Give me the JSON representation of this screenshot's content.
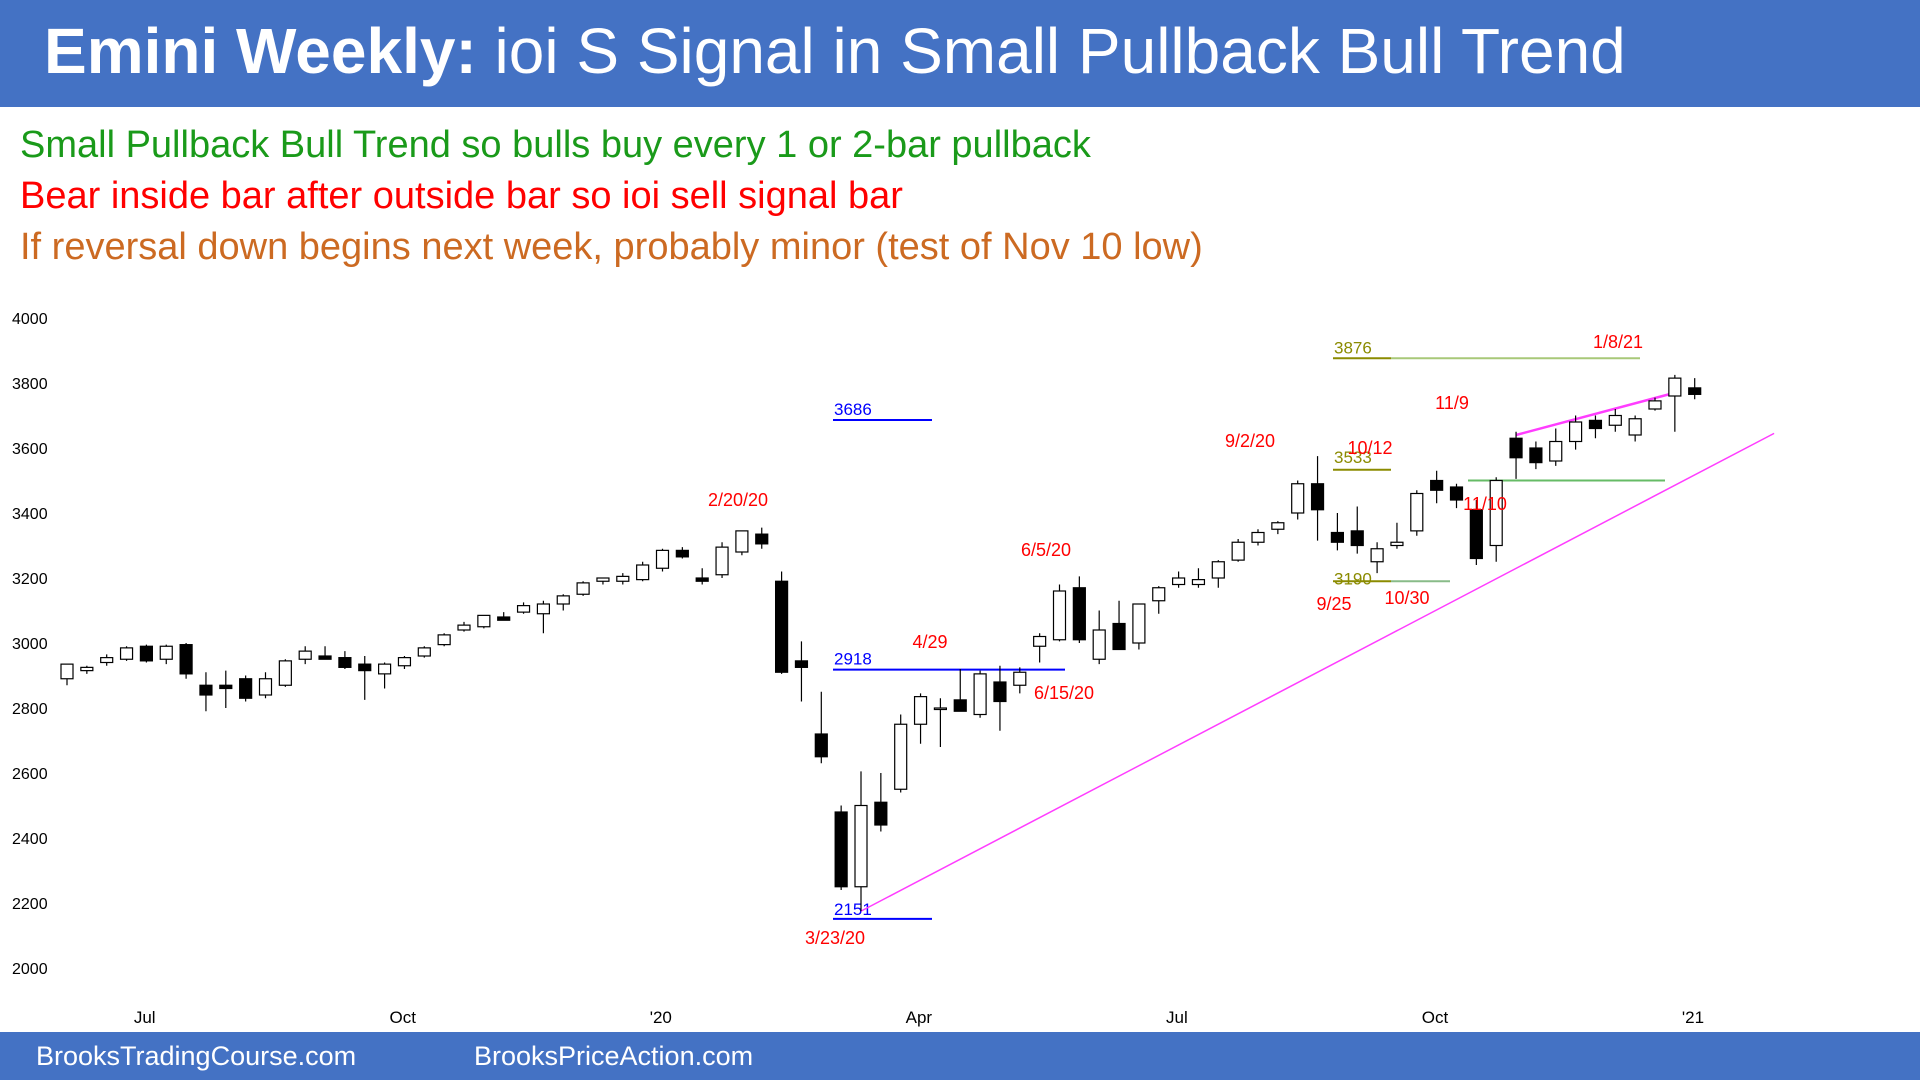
{
  "header": {
    "title_bold": "Emini Weekly:",
    "title_rest": " ioi S Signal in Small Pullback Bull Trend"
  },
  "notes": [
    {
      "text": "Small Pullback Bull Trend so bulls buy every 1 or 2-bar pullback",
      "color": "#1a9a1a"
    },
    {
      "text": "Bear inside bar after outside bar so ioi sell signal bar",
      "color": "#ff0000"
    },
    {
      "text": "If reversal down begins next week, probably minor (test of Nov 10 low)",
      "color": "#cc6a22"
    }
  ],
  "footer": {
    "left": "BrooksTradingCourse.com",
    "right": "BrooksPriceAction.com"
  },
  "chart_data": {
    "type": "candlestick",
    "y_ticks": [
      2000,
      2200,
      2400,
      2600,
      2800,
      3000,
      3200,
      3400,
      3600,
      3800,
      4000
    ],
    "ylim": [
      2000,
      4000
    ],
    "x_ticks": [
      {
        "label": "Jul",
        "index": 2
      },
      {
        "label": "Oct",
        "index": 15
      },
      {
        "label": "'20",
        "index": 28
      },
      {
        "label": "Apr",
        "index": 41
      },
      {
        "label": "Jul",
        "index": 54
      },
      {
        "label": "Oct",
        "index": 67
      },
      {
        "label": "'21",
        "index": 80
      }
    ],
    "candles": [
      {
        "o": 2890,
        "h": 2935,
        "l": 2870,
        "c": 2935
      },
      {
        "o": 2915,
        "h": 2930,
        "l": 2905,
        "c": 2925
      },
      {
        "o": 2940,
        "h": 2965,
        "l": 2930,
        "c": 2955
      },
      {
        "o": 2950,
        "h": 2990,
        "l": 2945,
        "c": 2985
      },
      {
        "o": 2990,
        "h": 2995,
        "l": 2940,
        "c": 2945
      },
      {
        "o": 2950,
        "h": 2995,
        "l": 2935,
        "c": 2990
      },
      {
        "o": 2995,
        "h": 3000,
        "l": 2890,
        "c": 2905
      },
      {
        "o": 2870,
        "h": 2910,
        "l": 2790,
        "c": 2840
      },
      {
        "o": 2870,
        "h": 2915,
        "l": 2800,
        "c": 2860
      },
      {
        "o": 2890,
        "h": 2900,
        "l": 2820,
        "c": 2830
      },
      {
        "o": 2840,
        "h": 2910,
        "l": 2830,
        "c": 2890
      },
      {
        "o": 2870,
        "h": 2950,
        "l": 2865,
        "c": 2945
      },
      {
        "o": 2950,
        "h": 2990,
        "l": 2935,
        "c": 2975
      },
      {
        "o": 2960,
        "h": 2990,
        "l": 2950,
        "c": 2950
      },
      {
        "o": 2955,
        "h": 2975,
        "l": 2920,
        "c": 2925
      },
      {
        "o": 2935,
        "h": 2960,
        "l": 2825,
        "c": 2915
      },
      {
        "o": 2905,
        "h": 2940,
        "l": 2860,
        "c": 2935
      },
      {
        "o": 2930,
        "h": 2960,
        "l": 2920,
        "c": 2955
      },
      {
        "o": 2960,
        "h": 2990,
        "l": 2955,
        "c": 2985
      },
      {
        "o": 2995,
        "h": 3030,
        "l": 2990,
        "c": 3025
      },
      {
        "o": 3040,
        "h": 3065,
        "l": 3035,
        "c": 3055
      },
      {
        "o": 3050,
        "h": 3085,
        "l": 3045,
        "c": 3085
      },
      {
        "o": 3080,
        "h": 3095,
        "l": 3070,
        "c": 3070
      },
      {
        "o": 3095,
        "h": 3125,
        "l": 3090,
        "c": 3115
      },
      {
        "o": 3090,
        "h": 3130,
        "l": 3030,
        "c": 3120
      },
      {
        "o": 3120,
        "h": 3150,
        "l": 3100,
        "c": 3145
      },
      {
        "o": 3150,
        "h": 3190,
        "l": 3145,
        "c": 3185
      },
      {
        "o": 3190,
        "h": 3200,
        "l": 3180,
        "c": 3200
      },
      {
        "o": 3190,
        "h": 3215,
        "l": 3180,
        "c": 3205
      },
      {
        "o": 3195,
        "h": 3250,
        "l": 3190,
        "c": 3240
      },
      {
        "o": 3230,
        "h": 3290,
        "l": 3220,
        "c": 3285
      },
      {
        "o": 3285,
        "h": 3295,
        "l": 3260,
        "c": 3265
      },
      {
        "o": 3200,
        "h": 3230,
        "l": 3180,
        "c": 3190
      },
      {
        "o": 3210,
        "h": 3310,
        "l": 3200,
        "c": 3295
      },
      {
        "o": 3280,
        "h": 3340,
        "l": 3270,
        "c": 3345
      },
      {
        "o": 3335,
        "h": 3355,
        "l": 3290,
        "c": 3305
      },
      {
        "o": 3190,
        "h": 3220,
        "l": 2905,
        "c": 2910
      },
      {
        "o": 2945,
        "h": 3005,
        "l": 2820,
        "c": 2925
      },
      {
        "o": 2720,
        "h": 2850,
        "l": 2630,
        "c": 2650
      },
      {
        "o": 2480,
        "h": 2500,
        "l": 2240,
        "c": 2250
      },
      {
        "o": 2250,
        "h": 2605,
        "l": 2175,
        "c": 2500
      },
      {
        "o": 2510,
        "h": 2600,
        "l": 2420,
        "c": 2440
      },
      {
        "o": 2550,
        "h": 2780,
        "l": 2540,
        "c": 2750
      },
      {
        "o": 2750,
        "h": 2845,
        "l": 2690,
        "c": 2835
      },
      {
        "o": 2800,
        "h": 2830,
        "l": 2680,
        "c": 2800
      },
      {
        "o": 2825,
        "h": 2920,
        "l": 2790,
        "c": 2790
      },
      {
        "o": 2780,
        "h": 2915,
        "l": 2770,
        "c": 2905
      },
      {
        "o": 2880,
        "h": 2930,
        "l": 2730,
        "c": 2820
      },
      {
        "o": 2870,
        "h": 2925,
        "l": 2845,
        "c": 2910
      },
      {
        "o": 2990,
        "h": 3030,
        "l": 2940,
        "c": 3020
      },
      {
        "o": 3010,
        "h": 3180,
        "l": 3005,
        "c": 3160
      },
      {
        "o": 3170,
        "h": 3205,
        "l": 3000,
        "c": 3010
      },
      {
        "o": 2950,
        "h": 3100,
        "l": 2935,
        "c": 3040
      },
      {
        "o": 3060,
        "h": 3130,
        "l": 2980,
        "c": 2980
      },
      {
        "o": 3000,
        "h": 3120,
        "l": 2980,
        "c": 3120
      },
      {
        "o": 3130,
        "h": 3175,
        "l": 3090,
        "c": 3170
      },
      {
        "o": 3180,
        "h": 3220,
        "l": 3170,
        "c": 3200
      },
      {
        "o": 3180,
        "h": 3230,
        "l": 3170,
        "c": 3195
      },
      {
        "o": 3200,
        "h": 3255,
        "l": 3170,
        "c": 3250
      },
      {
        "o": 3255,
        "h": 3320,
        "l": 3250,
        "c": 3310
      },
      {
        "o": 3310,
        "h": 3350,
        "l": 3300,
        "c": 3340
      },
      {
        "o": 3350,
        "h": 3375,
        "l": 3335,
        "c": 3370
      },
      {
        "o": 3400,
        "h": 3500,
        "l": 3380,
        "c": 3490
      },
      {
        "o": 3490,
        "h": 3575,
        "l": 3315,
        "c": 3410
      },
      {
        "o": 3340,
        "h": 3400,
        "l": 3285,
        "c": 3310
      },
      {
        "o": 3345,
        "h": 3420,
        "l": 3275,
        "c": 3300
      },
      {
        "o": 3250,
        "h": 3310,
        "l": 3215,
        "c": 3290
      },
      {
        "o": 3300,
        "h": 3370,
        "l": 3290,
        "c": 3310
      },
      {
        "o": 3345,
        "h": 3470,
        "l": 3330,
        "c": 3460
      },
      {
        "o": 3500,
        "h": 3530,
        "l": 3430,
        "c": 3470
      },
      {
        "o": 3480,
        "h": 3490,
        "l": 3415,
        "c": 3440
      },
      {
        "o": 3410,
        "h": 3440,
        "l": 3240,
        "c": 3260
      },
      {
        "o": 3300,
        "h": 3510,
        "l": 3250,
        "c": 3500
      },
      {
        "o": 3630,
        "h": 3650,
        "l": 3505,
        "c": 3570
      },
      {
        "o": 3600,
        "h": 3620,
        "l": 3535,
        "c": 3555
      },
      {
        "o": 3560,
        "h": 3660,
        "l": 3545,
        "c": 3620
      },
      {
        "o": 3620,
        "h": 3700,
        "l": 3595,
        "c": 3680
      },
      {
        "o": 3685,
        "h": 3700,
        "l": 3630,
        "c": 3660
      },
      {
        "o": 3670,
        "h": 3720,
        "l": 3650,
        "c": 3700
      },
      {
        "o": 3640,
        "h": 3700,
        "l": 3620,
        "c": 3690
      },
      {
        "o": 3720,
        "h": 3755,
        "l": 3715,
        "c": 3745
      },
      {
        "o": 3760,
        "h": 3825,
        "l": 3650,
        "c": 3815
      },
      {
        "o": 3785,
        "h": 3815,
        "l": 3750,
        "c": 3765
      }
    ],
    "h_lines": [
      {
        "label": "3876",
        "value": 3876,
        "color": "#8b8b00",
        "extend_color": "#a8c878"
      },
      {
        "label": "3686",
        "value": 3686,
        "color": "#0000ff"
      },
      {
        "label": "3533",
        "value": 3533,
        "color": "#8b8b00"
      },
      {
        "label": "3190",
        "value": 3190,
        "color": "#8b8b00",
        "extend_color": "#88bb88"
      },
      {
        "label": "2918",
        "value": 2918,
        "color": "#0000ff"
      },
      {
        "label": "2151",
        "value": 2151,
        "color": "#0000ff"
      },
      {
        "value": 3500,
        "color": "#66bb66"
      }
    ],
    "trendlines": [
      {
        "name": "bull trend line",
        "from": {
          "index": 40,
          "value": 2175
        },
        "to": {
          "index": 86,
          "value": 3645
        },
        "color": "#ff3dff"
      },
      {
        "name": "channel line",
        "from": {
          "index": 73,
          "value": 3640
        },
        "to": {
          "index": 81,
          "value": 3770
        },
        "color": "#ff3dff"
      }
    ],
    "annotations": [
      {
        "text": "2/20/20",
        "color": "#ff0000"
      },
      {
        "text": "3/23/20",
        "color": "#ff0000"
      },
      {
        "text": "4/29",
        "color": "#ff0000"
      },
      {
        "text": "6/5/20",
        "color": "#ff0000"
      },
      {
        "text": "6/15/20",
        "color": "#ff0000"
      },
      {
        "text": "9/2/20",
        "color": "#ff0000"
      },
      {
        "text": "10/12",
        "color": "#ff0000"
      },
      {
        "text": "9/25",
        "color": "#ff0000"
      },
      {
        "text": "10/30",
        "color": "#ff0000"
      },
      {
        "text": "11/9",
        "color": "#ff0000"
      },
      {
        "text": "11/10",
        "color": "#ff0000"
      },
      {
        "text": "1/8/21",
        "color": "#ff0000"
      }
    ]
  }
}
